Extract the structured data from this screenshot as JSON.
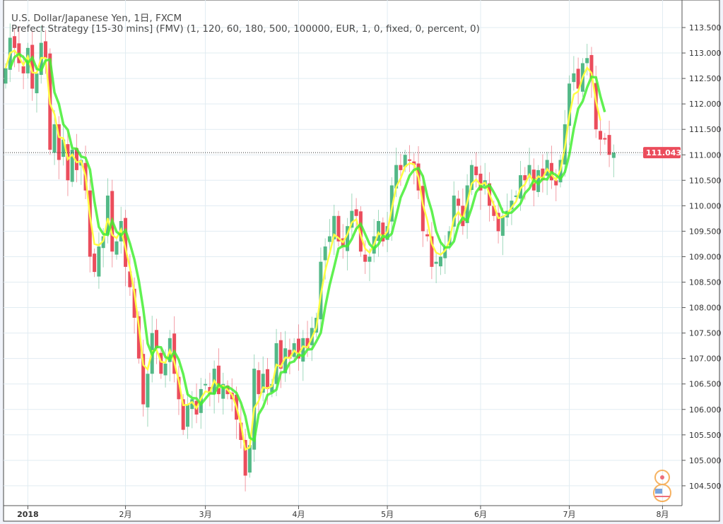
{
  "legend": {
    "symbol_line": "U.S. Dollar/Japanese Yen, 1日, FXCM",
    "strategy_line": "Prefect Strategy [15-30 mins] (FMV) (1, 120, 60, 180, 500, 100000, EUR, 1, 0, fixed, 0, percent, 0)"
  },
  "colors": {
    "up": "#53b987",
    "down": "#eb4d5c",
    "ma_fast": "#ffff44",
    "ma_slow": "#44ee33",
    "grid": "#e1ecf2",
    "last_price": "#eb4d5c"
  },
  "chart_data": {
    "type": "candlestick",
    "title": "U.S. Dollar/Japanese Yen, 1日, FXCM",
    "ylim": [
      104.2,
      113.9
    ],
    "y_ticks": [
      "104.500",
      "105.000",
      "105.500",
      "106.000",
      "106.500",
      "107.000",
      "107.500",
      "108.000",
      "108.500",
      "109.000",
      "109.500",
      "110.000",
      "110.500",
      "111.000",
      "111.500",
      "112.000",
      "112.500",
      "113.000",
      "113.500"
    ],
    "x_ticks": [
      {
        "label": "2018",
        "index": 5
      },
      {
        "label": "2月",
        "index": 27
      },
      {
        "label": "3月",
        "index": 45
      },
      {
        "label": "4月",
        "index": 66
      },
      {
        "label": "5月",
        "index": 86
      },
      {
        "label": "6月",
        "index": 107
      },
      {
        "label": "7月",
        "index": 127
      },
      {
        "label": "8月",
        "index": 148
      }
    ],
    "last_price": "111.043",
    "closes": [
      112.7,
      113.3,
      113.1,
      112.8,
      112.6,
      113.1,
      112.3,
      112.6,
      113.2,
      112.9,
      111.1,
      111.6,
      110.9,
      111.3,
      110.5,
      111.1,
      110.7,
      110.9,
      110.3,
      109.0,
      108.7,
      109.2,
      109.4,
      110.2,
      109.1,
      109.3,
      109.7,
      108.8,
      108.4,
      107.8,
      107.0,
      106.1,
      106.7,
      107.5,
      107.2,
      106.7,
      106.9,
      107.4,
      106.7,
      106.2,
      105.6,
      106.1,
      106.2,
      105.9,
      106.4,
      106.5,
      106.3,
      106.8,
      106.3,
      106.5,
      106.3,
      106.2,
      105.8,
      105.4,
      104.7,
      105.3,
      106.8,
      106.3,
      106.7,
      106.4,
      106.5,
      107.3,
      106.8,
      107.2,
      107.0,
      107.3,
      107.0,
      107.4,
      107.2,
      107.6,
      107.8,
      108.9,
      109.2,
      109.4,
      109.8,
      109.3,
      109.2,
      109.6,
      109.9,
      109.8,
      109.1,
      108.9,
      109.0,
      109.4,
      109.7,
      109.3,
      109.6,
      110.4,
      110.8,
      110.7,
      111.0,
      110.9,
      110.8,
      110.3,
      109.5,
      109.4,
      108.8,
      108.9,
      109.0,
      109.2,
      109.5,
      110.2,
      110.0,
      109.6,
      110.4,
      110.8,
      110.6,
      110.3,
      110.5,
      110.0,
      109.8,
      109.5,
      109.8,
      109.9,
      110.1,
      110.2,
      110.6,
      110.5,
      110.8,
      110.3,
      110.7,
      110.5,
      110.9,
      110.5,
      110.4,
      110.9,
      111.6,
      112.4,
      112.6,
      112.3,
      112.8,
      112.9,
      112.5,
      111.5,
      111.3,
      111.3,
      111.0,
      111.043
    ]
  }
}
